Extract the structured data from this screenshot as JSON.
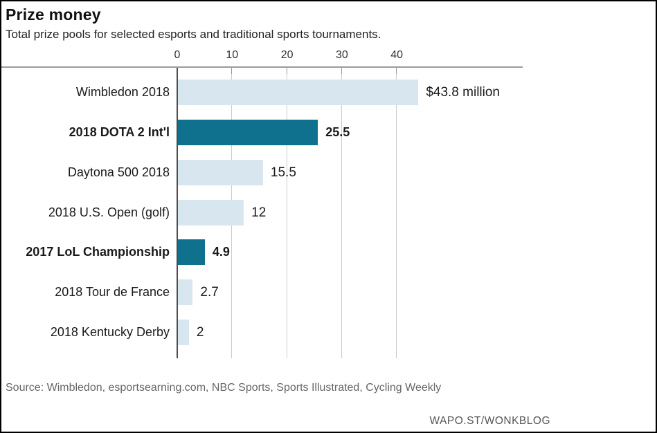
{
  "header": {
    "title": "Prize money",
    "subtitle": "Total prize pools for selected esports and traditional sports tournaments."
  },
  "footer": {
    "source": "Source: Wimbledon, esportsearning.com, NBC Sports, Sports Illustrated, Cycling Weekly",
    "credit": "WAPO.ST/WONKBLOG"
  },
  "colors": {
    "bar_default": "#d8e6ef",
    "bar_highlight": "#10718f",
    "gridline": "#cccccc",
    "tick_stub": "#999999",
    "axis_line": "#9a9a9a",
    "zero_line": "#4d4d4d",
    "text": "#1a1a1a",
    "muted_text": "#666666"
  },
  "chart_data": {
    "type": "bar",
    "orientation": "horizontal",
    "title": "Prize money",
    "subtitle": "Total prize pools for selected esports and traditional sports tournaments.",
    "unit": "millions of dollars",
    "categories": [
      "Wimbledon 2018",
      "2018 DOTA 2 Int'l",
      "Daytona 500 2018",
      "2018 U.S. Open (golf)",
      "2017 LoL Championship",
      "2018 Tour de France",
      "2018 Kentucky Derby"
    ],
    "values": [
      43.8,
      25.5,
      15.5,
      12,
      4.9,
      2.7,
      2
    ],
    "value_labels": [
      "$43.8 million",
      "25.5",
      "15.5",
      "12",
      "4.9",
      "2.7",
      "2"
    ],
    "highlighted": [
      false,
      true,
      false,
      false,
      true,
      false,
      false
    ],
    "x_ticks": [
      0,
      10,
      20,
      30,
      40
    ],
    "xlim": [
      0,
      63
    ],
    "grid": true,
    "legend": "none"
  }
}
